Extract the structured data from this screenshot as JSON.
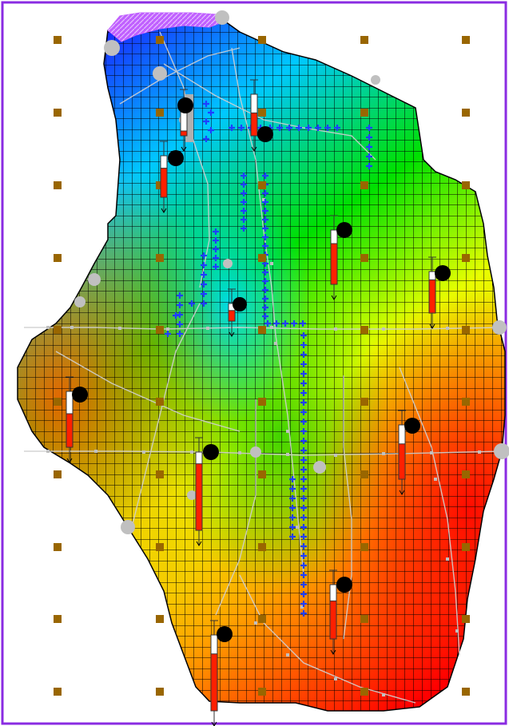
{
  "view": {
    "frame_color": "#8a2be2",
    "background": "#ffffff"
  },
  "grid": {
    "cols": 40,
    "rows": 60,
    "line_color": "#000000",
    "shading": "property-gradient",
    "palette": [
      "#1a1aff",
      "#00c8ff",
      "#00e000",
      "#e8ff00",
      "#ffa500",
      "#ff0000"
    ]
  },
  "annotation_colors": {
    "boundary_line": "#d0d0d0",
    "boundary_node": "#c0c0c0",
    "high_value_marker": "#1f3fff",
    "plot_dot": "#996600",
    "well_bar": "#ff2000",
    "well_head": "#000000",
    "inflow_hatch": "#c060ff",
    "inactive_patch": "#b0b0b0"
  },
  "legend": {
    "plot_dot_icon": "square-dot-icon",
    "well_icon": "well-gauge-icon",
    "marker_icon": "plus-marker-icon"
  },
  "wells": [
    {
      "id": "W1",
      "level": 0.55
    },
    {
      "id": "W2",
      "level": 0.7
    },
    {
      "id": "W3",
      "level": 0.75
    },
    {
      "id": "W4",
      "level": 0.8
    },
    {
      "id": "W5",
      "level": 0.6
    },
    {
      "id": "W6",
      "level": 0.65
    },
    {
      "id": "W7",
      "level": 0.85
    },
    {
      "id": "W8",
      "level": 0.7
    },
    {
      "id": "W9",
      "level": 0.75
    },
    {
      "id": "W10",
      "level": 0.6
    },
    {
      "id": "W11",
      "level": 0.15
    }
  ]
}
